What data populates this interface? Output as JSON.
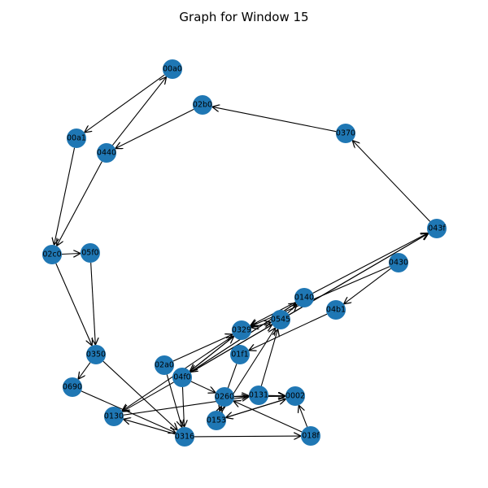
{
  "title": "Graph for Window 15",
  "style": {
    "node_color": "#1f77b4",
    "edge_color": "#000000"
  },
  "nodes": [
    {
      "id": "00a0",
      "label": "00a0"
    },
    {
      "id": "00a1",
      "label": "00a1"
    },
    {
      "id": "0440",
      "label": "0440"
    },
    {
      "id": "02b0",
      "label": "02b0"
    },
    {
      "id": "0370",
      "label": "0370"
    },
    {
      "id": "043f",
      "label": "043f"
    },
    {
      "id": "02c0",
      "label": "02c0"
    },
    {
      "id": "05f0",
      "label": "05f0"
    },
    {
      "id": "0430",
      "label": "0430"
    },
    {
      "id": "0140",
      "label": "0140"
    },
    {
      "id": "04b1",
      "label": "04b1"
    },
    {
      "id": "0545",
      "label": "0545"
    },
    {
      "id": "0329",
      "label": "0329"
    },
    {
      "id": "01f1",
      "label": "01f1"
    },
    {
      "id": "0350",
      "label": "0350"
    },
    {
      "id": "02a0",
      "label": "02a0"
    },
    {
      "id": "04f0",
      "label": "04f0"
    },
    {
      "id": "0690",
      "label": "0690"
    },
    {
      "id": "0260",
      "label": "0260"
    },
    {
      "id": "0131",
      "label": "0131"
    },
    {
      "id": "0002",
      "label": "0002"
    },
    {
      "id": "0130",
      "label": "0130"
    },
    {
      "id": "0153",
      "label": "0153"
    },
    {
      "id": "0316",
      "label": "0316"
    },
    {
      "id": "018f",
      "label": "018f"
    }
  ],
  "edges": [
    [
      "00a0",
      "00a1"
    ],
    [
      "0440",
      "00a0"
    ],
    [
      "02b0",
      "0440"
    ],
    [
      "0370",
      "02b0"
    ],
    [
      "043f",
      "0370"
    ],
    [
      "00a1",
      "02c0"
    ],
    [
      "0440",
      "02c0"
    ],
    [
      "02c0",
      "05f0"
    ],
    [
      "02c0",
      "0350"
    ],
    [
      "05f0",
      "0350"
    ],
    [
      "0350",
      "0690"
    ],
    [
      "0350",
      "0316"
    ],
    [
      "0690",
      "0316"
    ],
    [
      "0430",
      "04b1"
    ],
    [
      "0430",
      "0329"
    ],
    [
      "0140",
      "043f"
    ],
    [
      "0545",
      "043f"
    ],
    [
      "04f0",
      "043f"
    ],
    [
      "0140",
      "0329"
    ],
    [
      "0329",
      "0545"
    ],
    [
      "0545",
      "0329"
    ],
    [
      "0545",
      "0140"
    ],
    [
      "04f0",
      "0140"
    ],
    [
      "04f0",
      "0545"
    ],
    [
      "04f0",
      "0329"
    ],
    [
      "0140",
      "04f0"
    ],
    [
      "0329",
      "04f0"
    ],
    [
      "04b1",
      "01f1"
    ],
    [
      "02a0",
      "0329"
    ],
    [
      "02a0",
      "0316"
    ],
    [
      "04f0",
      "0316"
    ],
    [
      "04f0",
      "0130"
    ],
    [
      "0329",
      "0130"
    ],
    [
      "04f0",
      "0260"
    ],
    [
      "0260",
      "0131"
    ],
    [
      "0260",
      "0002"
    ],
    [
      "0131",
      "0002"
    ],
    [
      "0002",
      "0153"
    ],
    [
      "0153",
      "0002"
    ],
    [
      "0153",
      "0545"
    ],
    [
      "0131",
      "0545"
    ],
    [
      "0153",
      "0260"
    ],
    [
      "01f1",
      "0153"
    ],
    [
      "0130",
      "0131"
    ],
    [
      "0316",
      "0130"
    ],
    [
      "0316",
      "018f"
    ],
    [
      "018f",
      "0002"
    ],
    [
      "018f",
      "0260"
    ]
  ]
}
